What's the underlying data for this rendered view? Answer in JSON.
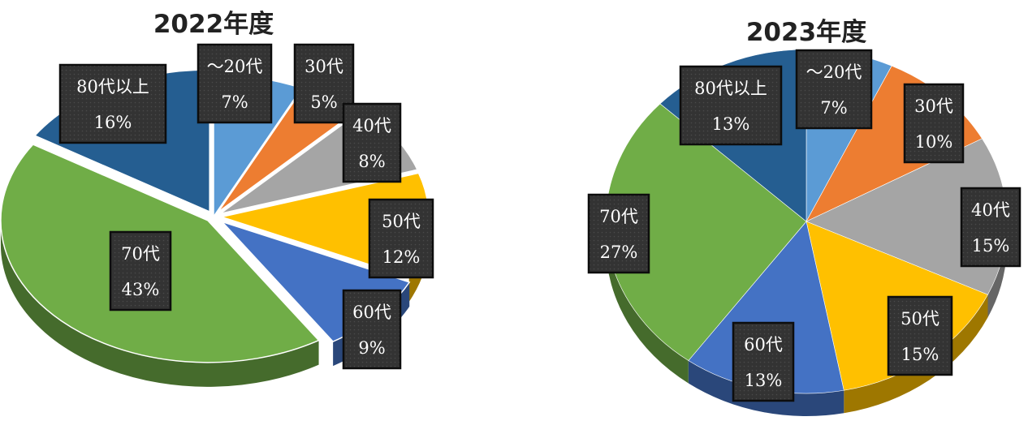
{
  "chart_data": [
    {
      "type": "pie",
      "title": "2022年度",
      "categories": [
        "～20代",
        "30代",
        "40代",
        "50代",
        "60代",
        "70代",
        "80代以上"
      ],
      "values": [
        7,
        5,
        8,
        12,
        9,
        43,
        16
      ],
      "value_labels": [
        "7%",
        "5%",
        "8%",
        "12%",
        "9%",
        "43%",
        "16%"
      ],
      "colors": [
        "#5B9BD5",
        "#ED7D31",
        "#A5A5A5",
        "#FFC000",
        "#4472C4",
        "#70AD47",
        "#255E91"
      ],
      "style": "3d-exploded"
    },
    {
      "type": "pie",
      "title": "2023年度",
      "categories": [
        "～20代",
        "30代",
        "40代",
        "50代",
        "60代",
        "70代",
        "80代以上"
      ],
      "values": [
        7,
        10,
        15,
        15,
        13,
        27,
        13
      ],
      "value_labels": [
        "7%",
        "10%",
        "15%",
        "15%",
        "13%",
        "27%",
        "13%"
      ],
      "colors": [
        "#5B9BD5",
        "#ED7D31",
        "#A5A5A5",
        "#FFC000",
        "#4472C4",
        "#70AD47",
        "#255E91"
      ],
      "style": "3d"
    }
  ]
}
